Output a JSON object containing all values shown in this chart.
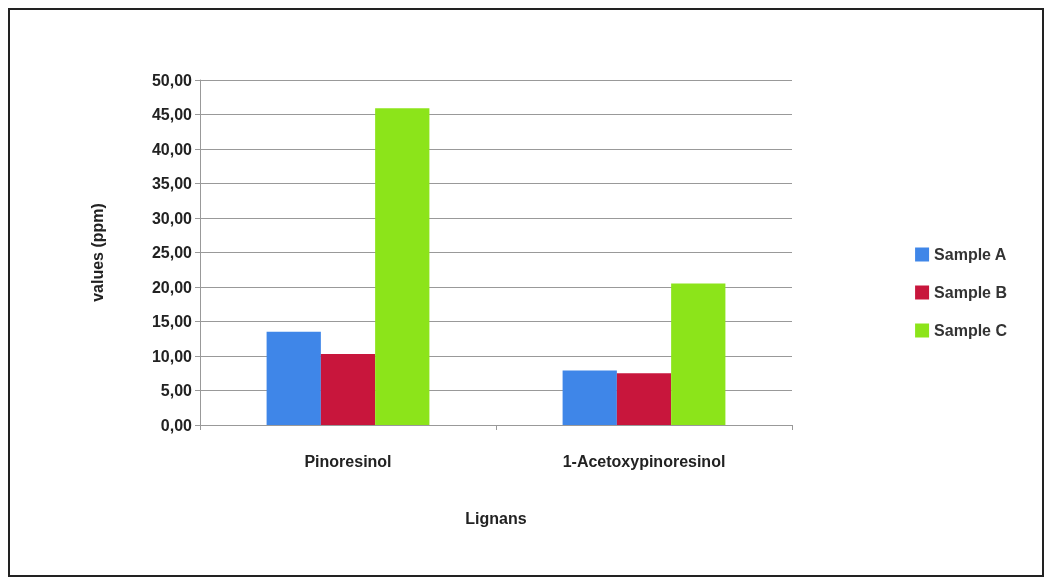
{
  "chart_data": {
    "type": "bar",
    "xlabel": "Lignans",
    "ylabel": "values (ppm)",
    "categories": [
      "Pinoresinol",
      "1-Acetoxypinoresinol"
    ],
    "series": [
      {
        "name": "Sample A",
        "color": "#3f86e8",
        "values": [
          13.5,
          7.9
        ]
      },
      {
        "name": "Sample B",
        "color": "#c8163c",
        "values": [
          10.3,
          7.5
        ]
      },
      {
        "name": "Sample C",
        "color": "#8ce41a",
        "values": [
          45.9,
          20.5
        ]
      }
    ],
    "ylim": [
      0,
      50
    ],
    "yticks": [
      {
        "value": 0,
        "label": "0,00"
      },
      {
        "value": 5,
        "label": "5,00"
      },
      {
        "value": 10,
        "label": "10,00"
      },
      {
        "value": 15,
        "label": "15,00"
      },
      {
        "value": 20,
        "label": "20,00"
      },
      {
        "value": 25,
        "label": "25,00"
      },
      {
        "value": 30,
        "label": "30,00"
      },
      {
        "value": 35,
        "label": "35,00"
      },
      {
        "value": 40,
        "label": "40,00"
      },
      {
        "value": 45,
        "label": "45,00"
      },
      {
        "value": 50,
        "label": "50,00"
      }
    ],
    "grid": "y",
    "legend": "right"
  }
}
